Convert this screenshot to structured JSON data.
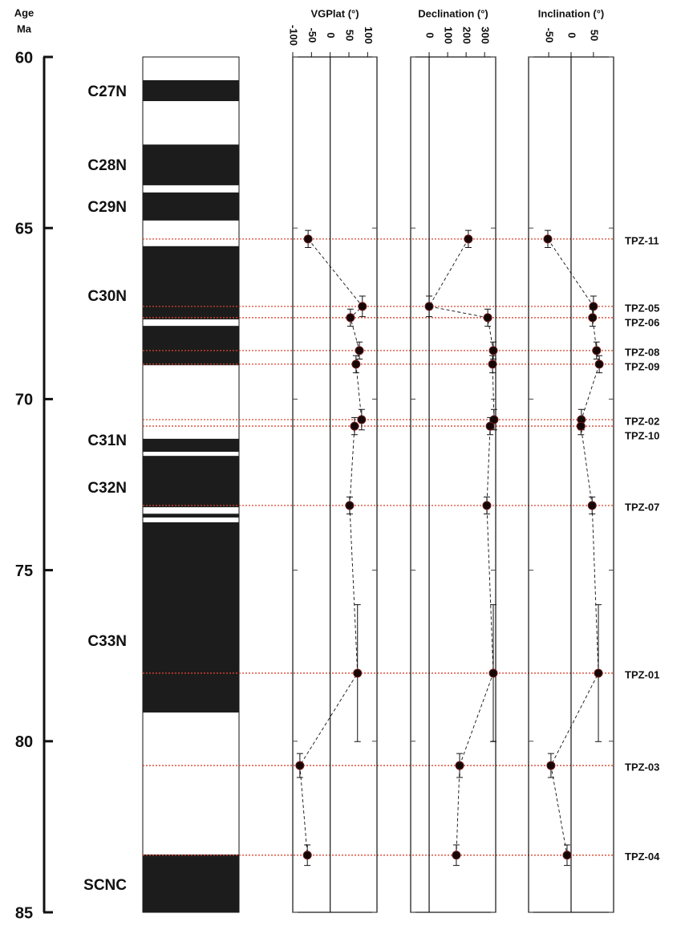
{
  "age_axis": {
    "title": "Age",
    "unit": "Ma",
    "ylim": [
      60,
      85
    ],
    "yticks": [
      60,
      65,
      70,
      75,
      80,
      85
    ]
  },
  "polarity": {
    "normal": [
      [
        60.68,
        61.29
      ],
      [
        62.56,
        63.75
      ],
      [
        63.96,
        64.78
      ],
      [
        65.53,
        67.67
      ],
      [
        67.86,
        69.01
      ],
      [
        71.16,
        71.54
      ],
      [
        71.66,
        73.16
      ],
      [
        73.35,
        73.46
      ],
      [
        73.6,
        79.16
      ],
      [
        83.31,
        85
      ]
    ],
    "chron_labels": [
      "C27N",
      "C28N",
      "C29N",
      "C30N",
      "C31N",
      "C32N",
      "C33N",
      "SCNC"
    ],
    "chron_label_ages": [
      61.03,
      63.19,
      64.41,
      67.01,
      71.23,
      72.62,
      77.1,
      84.23
    ]
  },
  "samples": {
    "names": [
      "TPZ-11",
      "TPZ-05",
      "TPZ-06",
      "TPZ-08",
      "TPZ-09",
      "TPZ-02",
      "TPZ-10",
      "TPZ-07",
      "TPZ-01",
      "TPZ-03",
      "TPZ-04"
    ],
    "ages": [
      65.32,
      67.29,
      67.62,
      68.58,
      68.98,
      70.6,
      70.79,
      73.11,
      78.01,
      80.71,
      83.33
    ],
    "age_errors": [
      0.25,
      0.3,
      0.25,
      0.25,
      0.25,
      0.3,
      0.25,
      0.25,
      2.0,
      0.35,
      0.3
    ]
  },
  "chart_data": [
    {
      "type": "line",
      "title": "VGPlat (°)",
      "xlim": [
        -100,
        125
      ],
      "xticks": [
        -100,
        -50,
        0,
        50,
        100
      ],
      "values": [
        -59,
        86,
        54,
        78,
        69,
        84,
        65,
        52,
        73,
        -81,
        -61
      ]
    },
    {
      "type": "line",
      "title": "Declination (°)",
      "xlim": [
        -100,
        360
      ],
      "xticks": [
        0,
        100,
        200,
        300
      ],
      "values": [
        212,
        0,
        317,
        347,
        343,
        351,
        330,
        312,
        347,
        165,
        147
      ]
    },
    {
      "type": "line",
      "title": "Inclination (°)",
      "xlim": [
        -95,
        95
      ],
      "xticks": [
        -50,
        0,
        50
      ],
      "values": [
        -52,
        50,
        48,
        57,
        63,
        23,
        22,
        47,
        61,
        -45,
        -9
      ]
    }
  ]
}
